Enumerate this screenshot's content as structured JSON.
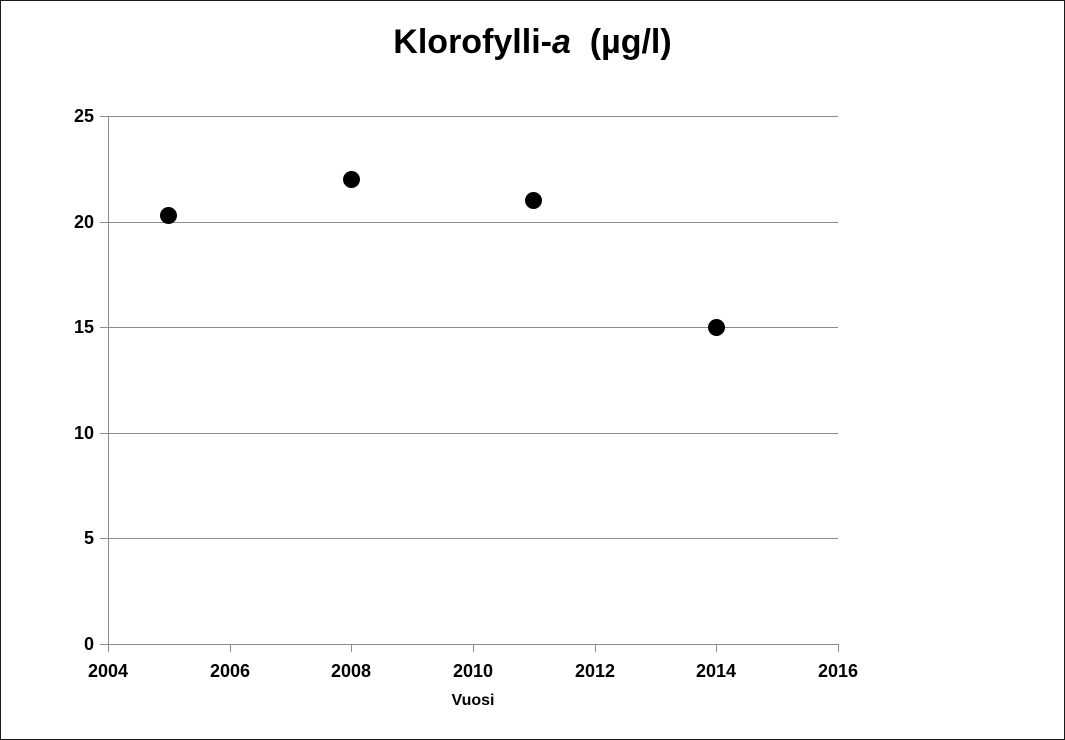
{
  "chart_data": {
    "type": "scatter",
    "title": {
      "prefix": "Klorofylli-",
      "italic": "a",
      "suffix": "  (µg/l)"
    },
    "xlabel": "Vuosi",
    "ylabel": "",
    "xlim": [
      2004,
      2016
    ],
    "ylim": [
      0,
      25
    ],
    "xticks": [
      2004,
      2006,
      2008,
      2010,
      2012,
      2014,
      2016
    ],
    "yticks": [
      0,
      5,
      10,
      15,
      20,
      25
    ],
    "grid": "horizontal",
    "legend": "none",
    "points": [
      {
        "x": 2005,
        "y": 20.3
      },
      {
        "x": 2008,
        "y": 22
      },
      {
        "x": 2011,
        "y": 21
      },
      {
        "x": 2014,
        "y": 15
      }
    ],
    "marker_color": "#000000",
    "axis_color": "#8c8c8c",
    "text_color": "#000000"
  }
}
